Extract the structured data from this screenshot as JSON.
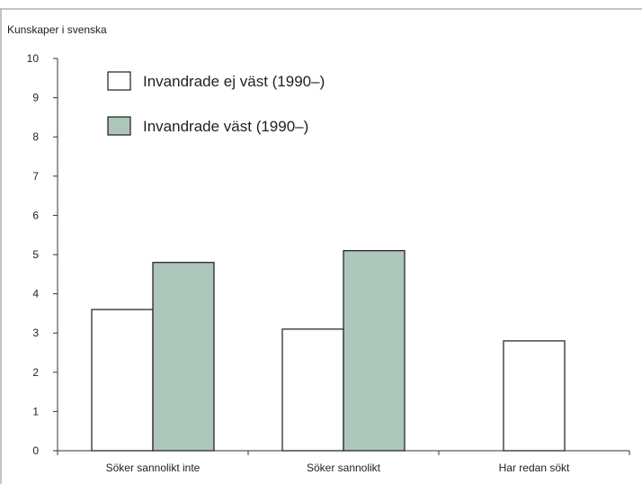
{
  "chart_data": {
    "type": "bar",
    "ylabel": "Kunskaper i svenska",
    "xlabel": "",
    "title": "",
    "ylim": [
      0,
      10
    ],
    "yticks": [
      0,
      1,
      2,
      3,
      4,
      5,
      6,
      7,
      8,
      9,
      10
    ],
    "categories": [
      "Söker sannolikt inte",
      "Söker sannolikt",
      "Har redan sökt"
    ],
    "series": [
      {
        "name": "Invandrade ej väst (1990–)",
        "values": [
          3.6,
          3.1,
          2.8
        ],
        "color": "#ffffff"
      },
      {
        "name": "Invandrade väst (1990–)",
        "values": [
          4.8,
          5.1,
          null
        ],
        "color": "#adc6ba"
      }
    ],
    "legend_position": "top-left",
    "grid": false,
    "colors": {
      "bar_stroke": "#1a1a1a",
      "axis": "#333333",
      "frame": "#888888"
    }
  }
}
